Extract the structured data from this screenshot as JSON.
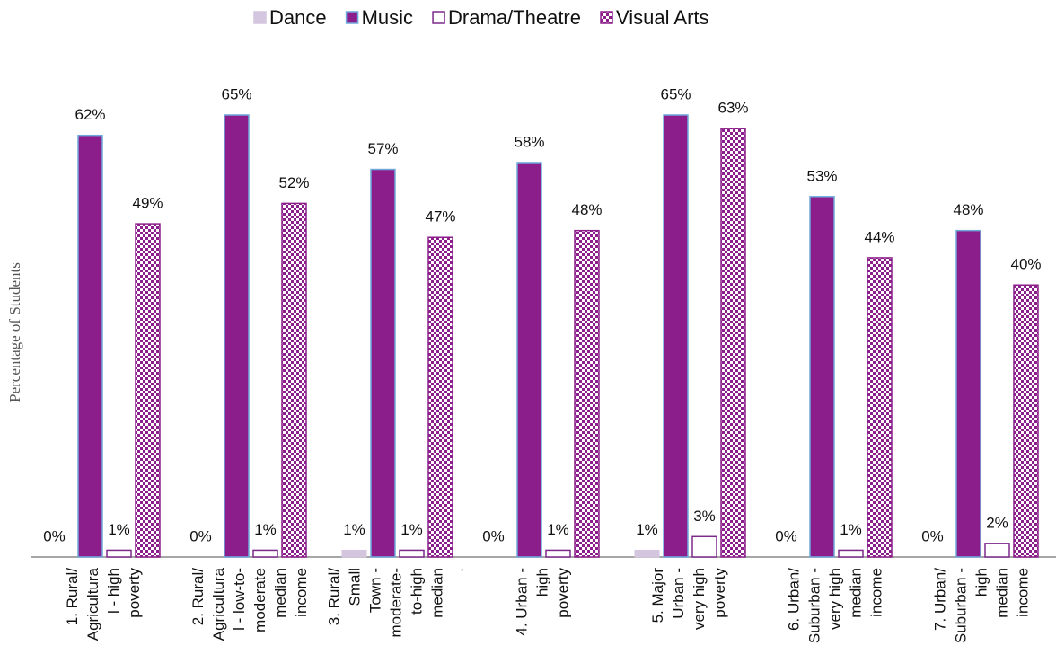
{
  "chart_data": {
    "type": "bar",
    "y_label": "Percentage of Students",
    "categories": [
      "1. Rural/\nAgricultura\nl - high\npoverty",
      "2. Rural/\nAgricultura\nl - low-to-\nmoderate\nmedian\nincome",
      "3. Rural/\nSmall\nTown -\nmoderate-\nto-high\nmedian\n.",
      "4. Urban -\nhigh\npoverty",
      "5. Major\nUrban -\nvery high\npoverty",
      "6. Urban/\nSuburban -\nvery high\nmedian\nincome",
      "7. Urban/\nSuburban -\nhigh\nmedian\nincome"
    ],
    "series": [
      {
        "name": "Dance",
        "color": "#d3c6de",
        "values": [
          0,
          0,
          1,
          0,
          1,
          0,
          0
        ],
        "value_labels": [
          "0%",
          "0%",
          "1%",
          "0%",
          "1%",
          "0%",
          "0%"
        ]
      },
      {
        "name": "Music",
        "color": "#8b1e8b",
        "values": [
          62,
          65,
          57,
          58,
          65,
          53,
          48
        ],
        "value_labels": [
          "62%",
          "65%",
          "57%",
          "58%",
          "65%",
          "53%",
          "48%"
        ]
      },
      {
        "name": "Drama/Theatre",
        "color": "#ffffff",
        "values": [
          1,
          1,
          1,
          1,
          3,
          1,
          2
        ],
        "value_labels": [
          "1%",
          "1%",
          "1%",
          "1%",
          "3%",
          "1%",
          "2%"
        ]
      },
      {
        "name": "Visual Arts",
        "color": "#8b1e8b",
        "values": [
          49,
          52,
          47,
          48,
          63,
          44,
          40
        ],
        "value_labels": [
          "49%",
          "52%",
          "47%",
          "48%",
          "63%",
          "44%",
          "40%"
        ]
      }
    ],
    "ylim": [
      0,
      72
    ],
    "legend": "top"
  }
}
